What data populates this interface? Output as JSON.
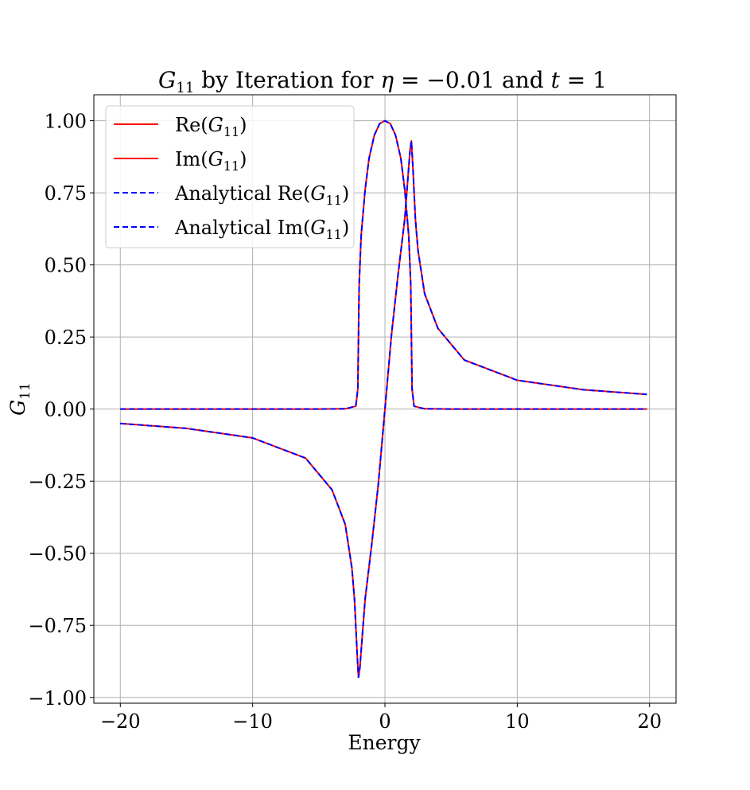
{
  "chart_data": {
    "type": "line",
    "title": {
      "g": "G",
      "sub": "11",
      "rest": " by Iteration for ",
      "eta": "η",
      "eq1": " = −0.01 and ",
      "t": "t",
      "eq2": " = 1"
    },
    "xlabel": "Energy",
    "ylabel": {
      "g": "G",
      "sub": "11"
    },
    "xlim": [
      -22,
      22
    ],
    "ylim": [
      -1.02,
      1.09
    ],
    "xticks": [
      {
        "value": -20,
        "label": "−20"
      },
      {
        "value": -10,
        "label": "−10"
      },
      {
        "value": 0,
        "label": "0"
      },
      {
        "value": 10,
        "label": "10"
      },
      {
        "value": 20,
        "label": "20"
      }
    ],
    "yticks": [
      {
        "value": -1.0,
        "label": "−1.00"
      },
      {
        "value": -0.75,
        "label": "−0.75"
      },
      {
        "value": -0.5,
        "label": "−0.50"
      },
      {
        "value": -0.25,
        "label": "−0.25"
      },
      {
        "value": 0.0,
        "label": "0.00"
      },
      {
        "value": 0.25,
        "label": "0.25"
      },
      {
        "value": 0.5,
        "label": "0.50"
      },
      {
        "value": 0.75,
        "label": "0.75"
      },
      {
        "value": 1.0,
        "label": "1.00"
      }
    ],
    "grid": true,
    "legend_position": "top-left",
    "series": [
      {
        "name": "Re(G11)",
        "legend": {
          "pre": "Re(",
          "g": "G",
          "sub": "11",
          "post": ")"
        },
        "color": "#ff0000",
        "dash": "solid",
        "x": [
          -20,
          -15,
          -10,
          -6,
          -4,
          -3,
          -2.5,
          -2.3,
          -2.1,
          -2.0,
          -1.9,
          -1.7,
          -1.5,
          -1,
          -0.5,
          0,
          0.5,
          1,
          1.5,
          1.7,
          1.9,
          2.0,
          2.1,
          2.3,
          2.5,
          3,
          4,
          6,
          10,
          15,
          19.8
        ],
        "y": [
          -0.05,
          -0.067,
          -0.1,
          -0.17,
          -0.28,
          -0.4,
          -0.55,
          -0.66,
          -0.85,
          -0.93,
          -0.9,
          -0.78,
          -0.66,
          -0.47,
          -0.26,
          0,
          0.26,
          0.47,
          0.66,
          0.78,
          0.9,
          0.93,
          0.85,
          0.66,
          0.55,
          0.4,
          0.28,
          0.17,
          0.1,
          0.067,
          0.051
        ]
      },
      {
        "name": "Im(G11)",
        "legend": {
          "pre": "Im(",
          "g": "G",
          "sub": "11",
          "post": ")"
        },
        "color": "#ff0000",
        "dash": "solid",
        "x": [
          -20,
          -10,
          -5,
          -3,
          -2.2,
          -2.05,
          -1.95,
          -1.8,
          -1.5,
          -1.2,
          -0.8,
          -0.4,
          0,
          0.4,
          0.8,
          1.2,
          1.5,
          1.8,
          1.95,
          2.05,
          2.2,
          3,
          5,
          10,
          19.8
        ],
        "y": [
          0,
          0,
          0,
          0.001,
          0.01,
          0.07,
          0.43,
          0.6,
          0.76,
          0.87,
          0.95,
          0.99,
          1.0,
          0.99,
          0.95,
          0.87,
          0.76,
          0.6,
          0.43,
          0.07,
          0.01,
          0.001,
          0,
          0,
          0
        ]
      },
      {
        "name": "Analytical Re(G11)",
        "legend": {
          "pre": "Analytical Re(",
          "g": "G",
          "sub": "11",
          "post": ")"
        },
        "color": "#0000ff",
        "dash": "dashed",
        "x": [
          -20,
          -15,
          -10,
          -6,
          -4,
          -3,
          -2.5,
          -2.3,
          -2.1,
          -2.0,
          -1.9,
          -1.7,
          -1.5,
          -1,
          -0.5,
          0,
          0.5,
          1,
          1.5,
          1.7,
          1.9,
          2.0,
          2.1,
          2.3,
          2.5,
          3,
          4,
          6,
          10,
          15,
          19.8
        ],
        "y": [
          -0.05,
          -0.067,
          -0.1,
          -0.17,
          -0.28,
          -0.4,
          -0.55,
          -0.66,
          -0.85,
          -0.93,
          -0.9,
          -0.78,
          -0.66,
          -0.47,
          -0.26,
          0,
          0.26,
          0.47,
          0.66,
          0.78,
          0.9,
          0.93,
          0.85,
          0.66,
          0.55,
          0.4,
          0.28,
          0.17,
          0.1,
          0.067,
          0.051
        ]
      },
      {
        "name": "Analytical Im(G11)",
        "legend": {
          "pre": "Analytical Im(",
          "g": "G",
          "sub": "11",
          "post": ")"
        },
        "color": "#0000ff",
        "dash": "dashed",
        "x": [
          -20,
          -10,
          -5,
          -3,
          -2.2,
          -2.05,
          -1.95,
          -1.8,
          -1.5,
          -1.2,
          -0.8,
          -0.4,
          0,
          0.4,
          0.8,
          1.2,
          1.5,
          1.8,
          1.95,
          2.05,
          2.2,
          3,
          5,
          10,
          19.8
        ],
        "y": [
          0,
          0,
          0,
          0.001,
          0.01,
          0.07,
          0.43,
          0.6,
          0.76,
          0.87,
          0.95,
          0.99,
          1.0,
          0.99,
          0.95,
          0.87,
          0.76,
          0.6,
          0.43,
          0.07,
          0.01,
          0.001,
          0,
          0,
          0
        ]
      }
    ]
  }
}
